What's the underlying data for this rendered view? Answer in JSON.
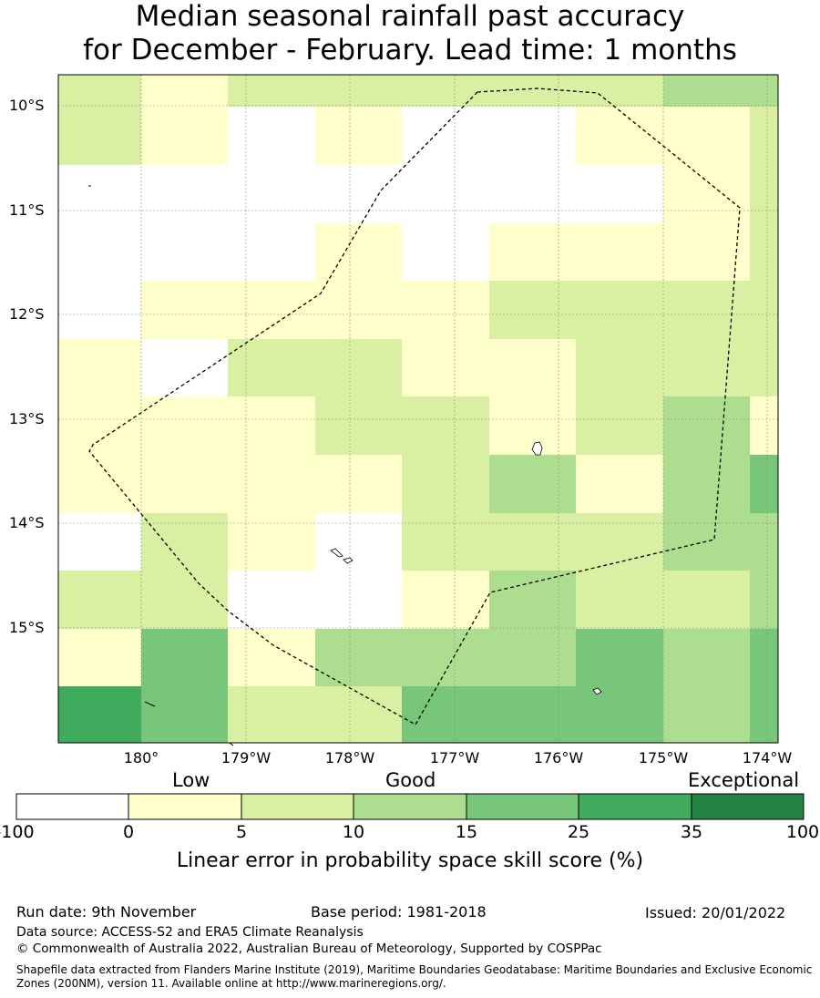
{
  "title": {
    "line1": "Median seasonal rainfall past accuracy",
    "line2": "for December - February. Lead time: 1 months"
  },
  "map": {
    "lat_labels": [
      "10°S",
      "11°S",
      "12°S",
      "13°S",
      "14°S",
      "15°S"
    ],
    "lon_labels": [
      "180°",
      "179°W",
      "178°W",
      "177°W",
      "176°W",
      "175°W",
      "174°W"
    ],
    "skill_grid": [
      [
        2,
        1,
        2,
        2,
        2,
        2,
        2,
        3,
        3
      ],
      [
        2,
        1,
        0,
        1,
        0,
        0,
        1,
        1,
        2
      ],
      [
        0,
        0,
        0,
        0,
        0,
        0,
        0,
        1,
        2
      ],
      [
        0,
        0,
        0,
        1,
        0,
        1,
        1,
        1,
        2
      ],
      [
        0,
        1,
        1,
        1,
        1,
        2,
        2,
        2,
        2
      ],
      [
        1,
        0,
        2,
        2,
        1,
        1,
        2,
        2,
        2
      ],
      [
        1,
        1,
        1,
        2,
        2,
        1,
        2,
        3,
        1
      ],
      [
        1,
        1,
        1,
        1,
        2,
        3,
        1,
        3,
        4
      ],
      [
        0,
        2,
        1,
        0,
        2,
        2,
        2,
        3,
        3
      ],
      [
        2,
        2,
        0,
        0,
        1,
        3,
        2,
        2,
        3
      ],
      [
        1,
        4,
        1,
        3,
        3,
        3,
        4,
        3,
        4
      ],
      [
        5,
        4,
        2,
        2,
        4,
        4,
        4,
        3,
        4
      ]
    ]
  },
  "colorbar": {
    "category_low": "Low",
    "category_good": "Good",
    "category_exceptional": "Exceptional",
    "ticks": [
      "-100",
      "0",
      "5",
      "10",
      "15",
      "25",
      "35",
      "100"
    ],
    "colors": [
      "#ffffff",
      "#ffffcc",
      "#d9f0a3",
      "#addd8e",
      "#78c679",
      "#41ab5d",
      "#238443"
    ],
    "label": "Linear error in probability space skill score (%)"
  },
  "footer": {
    "run_date": "Run date: 9th November",
    "base_period": "Base period: 1981-2018",
    "issued": "Issued: 20/01/2022",
    "data_source": "Data source: ACCESS-S2 and ERA5 Climate Reanalysis",
    "copyright": "© Commonwealth of Australia 2022, Australian Bureau of Meteorology, Supported by COSPPac",
    "shapefile_line1": "Shapefile data extracted from Flanders Marine Institute (2019), Maritime Boundaries Geodatabase: Maritime Boundaries and Exclusive Economic",
    "shapefile_line2": "Zones (200NM), version 11. Available online at http://www.marineregions.org/."
  }
}
